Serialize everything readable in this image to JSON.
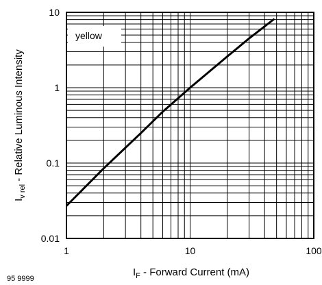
{
  "chart_data": {
    "type": "line",
    "x_scale": "log",
    "y_scale": "log",
    "xlim": [
      1,
      100
    ],
    "ylim": [
      0.01,
      10
    ],
    "grid": true,
    "x_ticks": [
      {
        "value": 1,
        "label": "1"
      },
      {
        "value": 10,
        "label": "10"
      },
      {
        "value": 100,
        "label": "100"
      }
    ],
    "y_ticks": [
      {
        "value": 0.01,
        "label": "0.01"
      },
      {
        "value": 0.1,
        "label": "0.1"
      },
      {
        "value": 1,
        "label": "1"
      },
      {
        "value": 10,
        "label": "10"
      }
    ],
    "xlabel": {
      "main": "I",
      "sub": "F",
      "rest": "  - Forward Current (mA)"
    },
    "ylabel": {
      "main": "I",
      "sub": "v rel",
      "rest": "  - Relative Luminous Intensity"
    },
    "annotation": "yellow",
    "figure_number": "95 9999",
    "series": [
      {
        "x": [
          1,
          2,
          4,
          6,
          10,
          20,
          30,
          48
        ],
        "y": [
          0.027,
          0.085,
          0.25,
          0.48,
          1.0,
          2.6,
          4.5,
          8.2
        ],
        "color": "#000000"
      }
    ]
  }
}
